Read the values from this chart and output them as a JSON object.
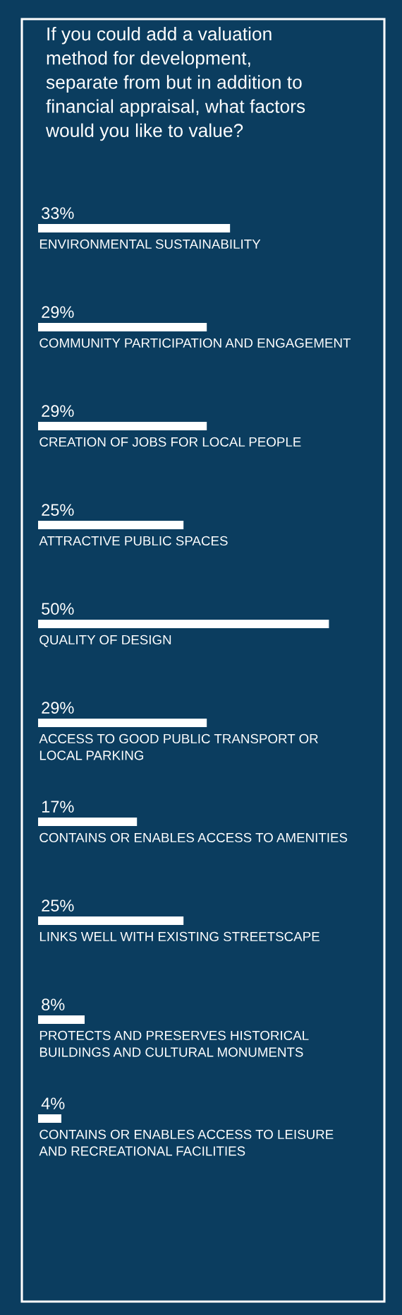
{
  "chart_data": {
    "type": "bar",
    "orientation": "horizontal",
    "title": "If you could add a valuation\nmethod for development,\nseparate from but in addition to\nfinancial appraisal, what factors\nwould you like to value?",
    "categories": [
      "ENVIRONMENTAL SUSTAINABILITY",
      "COMMUNITY PARTICIPATION AND ENGAGEMENT",
      "CREATION OF JOBS FOR LOCAL PEOPLE",
      "ATTRACTIVE PUBLIC SPACES",
      "QUALITY OF DESIGN",
      "ACCESS TO GOOD PUBLIC TRANSPORT OR\nLOCAL PARKING",
      "CONTAINS OR ENABLES ACCESS TO AMENITIES",
      "LINKS WELL WITH EXISTING STREETSCAPE",
      "PROTECTS AND PRESERVES HISTORICAL\nBUILDINGS AND CULTURAL MONUMENTS",
      "CONTAINS OR ENABLES ACCESS TO LEISURE\nAND RECREATIONAL FACILITIES"
    ],
    "values": [
      33,
      29,
      29,
      25,
      50,
      29,
      17,
      25,
      8,
      4
    ],
    "value_labels": [
      "33%",
      "29%",
      "29%",
      "25%",
      "50%",
      "29%",
      "17%",
      "25%",
      "8%",
      "4%"
    ],
    "color": "#ffffff",
    "tick_labels": false
  }
}
